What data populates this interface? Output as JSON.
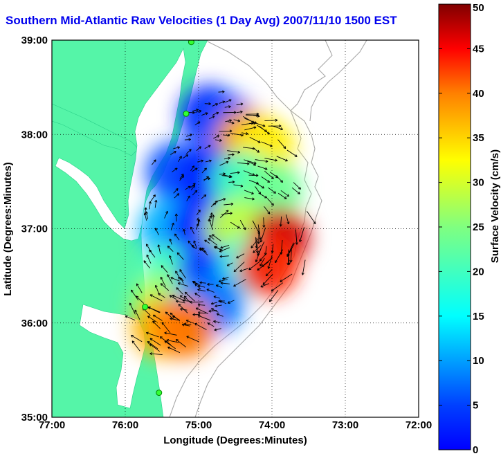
{
  "chart_data": {
    "type": "heatmap",
    "title": "Southern Mid-Atlantic Raw Velocities (1 Day Avg) 2007/11/10 1500 EST",
    "xlabel": "Longitude (Degrees:Minutes)",
    "ylabel": "Latitude (Degrees:Minutes)",
    "x_ticks": [
      {
        "value": -77,
        "label": "77:00"
      },
      {
        "value": -76,
        "label": "76:00"
      },
      {
        "value": -75,
        "label": "75:00"
      },
      {
        "value": -74,
        "label": "74:00"
      },
      {
        "value": -73,
        "label": "73:00"
      },
      {
        "value": -72,
        "label": "72:00"
      }
    ],
    "y_ticks": [
      {
        "value": 35,
        "label": "35:00"
      },
      {
        "value": 36,
        "label": "36:00"
      },
      {
        "value": 37,
        "label": "37:00"
      },
      {
        "value": 38,
        "label": "38:00"
      },
      {
        "value": 39,
        "label": "39:00"
      }
    ],
    "xlim": [
      -77,
      -72
    ],
    "ylim": [
      35,
      39
    ],
    "grid": true,
    "colorbar": {
      "label": "Surface Velocity (cm/s)",
      "range": [
        0,
        50
      ],
      "ticks": [
        0,
        5,
        10,
        15,
        20,
        25,
        30,
        35,
        40,
        45,
        50
      ],
      "colormap": "jet"
    },
    "velocity_field": [
      {
        "lon": -74.85,
        "lat": 38.2,
        "speed": 8
      },
      {
        "lon": -74.6,
        "lat": 38.1,
        "speed": 10
      },
      {
        "lon": -74.35,
        "lat": 37.95,
        "speed": 36
      },
      {
        "lon": -74.1,
        "lat": 37.85,
        "speed": 32
      },
      {
        "lon": -75.3,
        "lat": 37.6,
        "speed": 10
      },
      {
        "lon": -74.9,
        "lat": 37.55,
        "speed": 8
      },
      {
        "lon": -74.4,
        "lat": 37.5,
        "speed": 22
      },
      {
        "lon": -74.0,
        "lat": 37.4,
        "speed": 24
      },
      {
        "lon": -75.4,
        "lat": 37.0,
        "speed": 15
      },
      {
        "lon": -75.0,
        "lat": 37.0,
        "speed": 8
      },
      {
        "lon": -74.5,
        "lat": 37.0,
        "speed": 28
      },
      {
        "lon": -73.9,
        "lat": 36.9,
        "speed": 46
      },
      {
        "lon": -75.4,
        "lat": 36.5,
        "speed": 22
      },
      {
        "lon": -74.9,
        "lat": 36.5,
        "speed": 9
      },
      {
        "lon": -74.3,
        "lat": 36.6,
        "speed": 20
      },
      {
        "lon": -74.05,
        "lat": 36.6,
        "speed": 42
      },
      {
        "lon": -75.5,
        "lat": 36.2,
        "speed": 27
      },
      {
        "lon": -75.1,
        "lat": 36.1,
        "speed": 16
      },
      {
        "lon": -74.8,
        "lat": 36.2,
        "speed": 12
      },
      {
        "lon": -75.5,
        "lat": 35.95,
        "speed": 35
      },
      {
        "lon": -75.2,
        "lat": 35.95,
        "speed": 38
      }
    ],
    "stations": [
      {
        "lon": -75.1,
        "lat": 38.98
      },
      {
        "lon": -75.17,
        "lat": 38.22
      },
      {
        "lon": -75.73,
        "lat": 36.17
      },
      {
        "lon": -75.54,
        "lat": 35.26
      }
    ]
  }
}
